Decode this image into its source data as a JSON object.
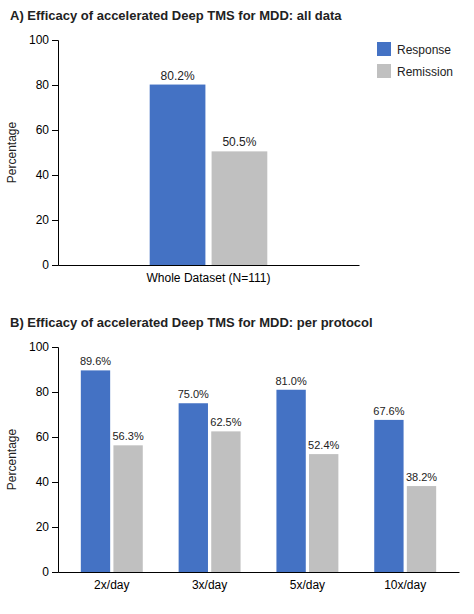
{
  "chart_data": [
    {
      "type": "bar",
      "title": "A) Efficacy of accelerated Deep TMS for MDD: all data",
      "y_label": "Percentage",
      "categories": [
        "Whole Dataset (N=111)"
      ],
      "series": [
        {
          "name": "Response",
          "color": "#4472C4",
          "values": [
            80.2
          ],
          "value_labels": [
            "80.2%"
          ]
        },
        {
          "name": "Remission",
          "color": "#C0C0C0",
          "values": [
            50.5
          ],
          "value_labels": [
            "50.5%"
          ]
        }
      ],
      "ylim": [
        0,
        100
      ],
      "yticks": [
        0,
        20,
        40,
        60,
        80,
        100
      ],
      "grid": false,
      "legend": "upper right",
      "data_labels": true
    },
    {
      "type": "bar",
      "title": "B) Efficacy of accelerated Deep TMS for MDD: per protocol",
      "y_label": "Percentage",
      "categories": [
        "2x/day",
        "3x/day",
        "5x/day",
        "10x/day"
      ],
      "series": [
        {
          "color": "#4472C4",
          "values": [
            89.6,
            75.0,
            81.0,
            67.6
          ],
          "value_labels": [
            "89.6%",
            "75.0%",
            "81.0%",
            "67.6%"
          ]
        },
        {
          "color": "#C0C0C0",
          "values": [
            56.3,
            62.5,
            52.4,
            38.2
          ],
          "value_labels": [
            "56.3%",
            "62.5%",
            "52.4%",
            "38.2%"
          ]
        }
      ],
      "ylim": [
        0,
        100
      ],
      "yticks": [
        0,
        20,
        40,
        60,
        80,
        100
      ],
      "grid": false,
      "data_labels": true
    }
  ]
}
